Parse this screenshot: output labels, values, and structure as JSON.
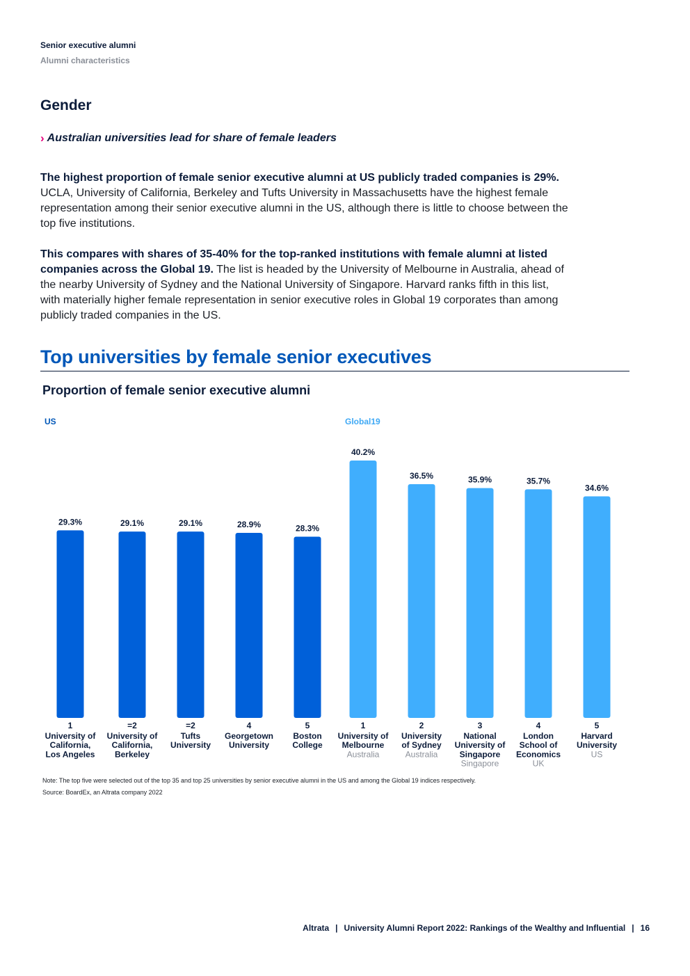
{
  "header": {
    "section": "Senior executive alumni",
    "subsection": "Alumni characteristics"
  },
  "heading": "Gender",
  "subheading": "Australian universities lead for share of female leaders",
  "paragraph1": {
    "bold": "The highest proportion of female senior executive alumni at US publicly traded companies is 29%.",
    "text": " UCLA, University of California, Berkeley and Tufts University in Massachusetts have the highest female representation among their senior executive alumni in the US, although there is little to choose between the top five institutions."
  },
  "paragraph2": {
    "bold": "This compares with shares of 35-40% for the top-ranked institutions with female alumni at listed companies across the Global 19.",
    "text": " The list is headed by the University of Melbourne in Australia, ahead of the nearby University of Sydney and the National University of Singapore. Harvard ranks fifth in this list, with materially higher female representation in senior executive roles in Global 19 corporates than among publicly traded companies in the US."
  },
  "chart_title": "Top universities by female senior executives",
  "chart_subtitle": "Proportion of female senior executive alumni",
  "chart_data": {
    "type": "bar",
    "title": "Top universities by female senior executives",
    "subtitle": "Proportion of female senior executive alumni",
    "ylabel": "",
    "xlabel": "",
    "ylim": [
      0,
      40.2
    ],
    "groups": [
      {
        "name": "US",
        "color": "#0060d9",
        "label_color": "#0057b8",
        "bars": [
          {
            "rank": "1",
            "name": [
              "University of",
              "California,",
              "Los Angeles"
            ],
            "country": "",
            "value": 29.3,
            "label": "29.3%"
          },
          {
            "rank": "=2",
            "name": [
              "University of",
              "California,",
              "Berkeley"
            ],
            "country": "",
            "value": 29.1,
            "label": "29.1%"
          },
          {
            "rank": "=2",
            "name": [
              "Tufts",
              "University"
            ],
            "country": "",
            "value": 29.1,
            "label": "29.1%"
          },
          {
            "rank": "4",
            "name": [
              "Georgetown",
              "University"
            ],
            "country": "",
            "value": 28.9,
            "label": "28.9%"
          },
          {
            "rank": "5",
            "name": [
              "Boston",
              "College"
            ],
            "country": "",
            "value": 28.3,
            "label": "28.3%"
          }
        ]
      },
      {
        "name": "Global19",
        "color": "#40aefd",
        "label_color": "#3fa9f5",
        "bars": [
          {
            "rank": "1",
            "name": [
              "University of",
              "Melbourne"
            ],
            "country": "Australia",
            "value": 40.2,
            "label": "40.2%"
          },
          {
            "rank": "2",
            "name": [
              "University",
              "of Sydney"
            ],
            "country": "Australia",
            "value": 36.5,
            "label": "36.5%"
          },
          {
            "rank": "3",
            "name": [
              "National",
              "University of",
              "Singapore"
            ],
            "country": "Singapore",
            "value": 35.9,
            "label": "35.9%"
          },
          {
            "rank": "4",
            "name": [
              "London",
              "School of",
              "Economics"
            ],
            "country": "UK",
            "value": 35.7,
            "label": "35.7%"
          },
          {
            "rank": "5",
            "name": [
              "Harvard",
              "University"
            ],
            "country": "US",
            "value": 34.6,
            "label": "34.6%"
          }
        ]
      }
    ]
  },
  "note": "Note: The top five were selected out of the top 35 and top 25 universities by senior executive alumni in the US and among the Global 19 indices respectively.",
  "source": "Source: BoardEx, an Altrata company 2022",
  "footer": {
    "brand": "Altrata",
    "report": "University Alumni Report 2022: Rankings of the Wealthy and Influential",
    "page": "16",
    "sep": "|"
  }
}
